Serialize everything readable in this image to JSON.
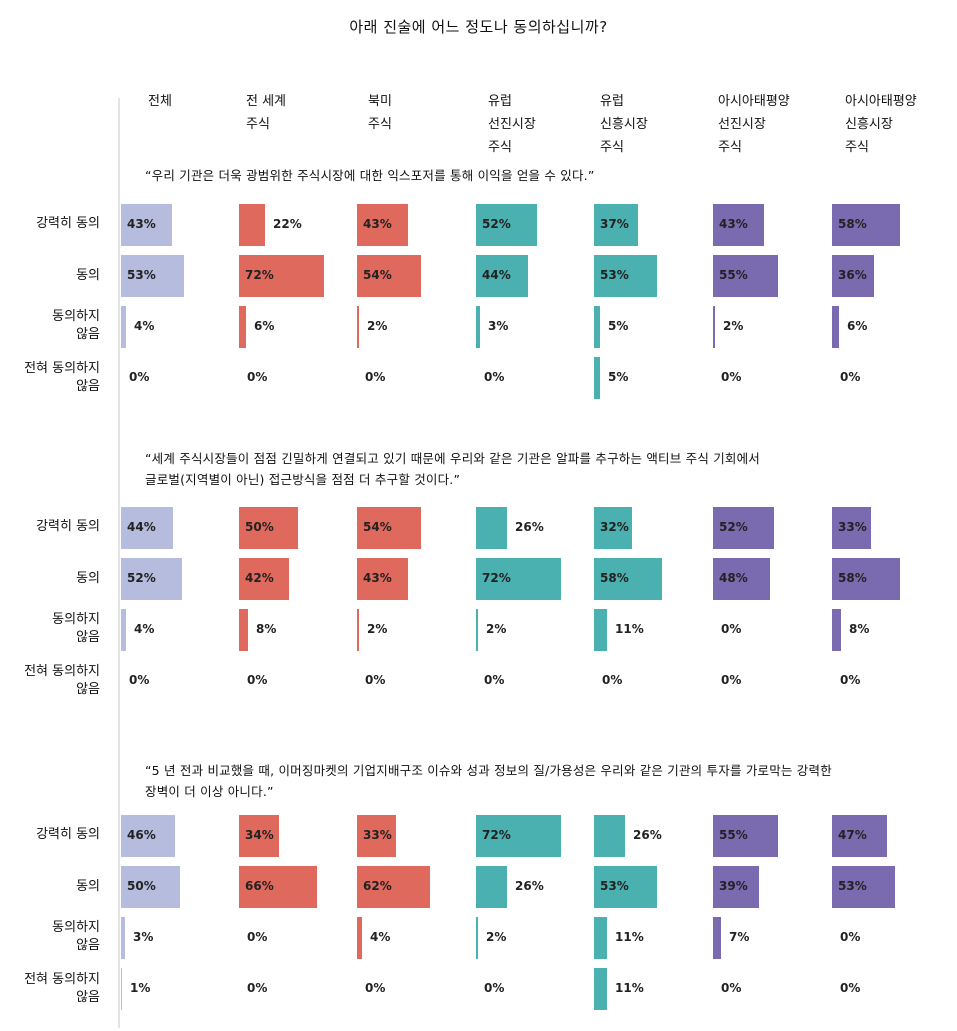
{
  "title": "아래 진술에 어느 정도나 동의하십니까?",
  "colors": {
    "전체": "#b5bcdd",
    "전 세계 주식": "#e0695e",
    "북미 주식": "#e0695e",
    "유럽 선진시장 주식": "#4bb0b0",
    "유럽 신흥시장 주식": "#4bb0b0",
    "아시아태평양 선진시장 주식": "#7a6bb0",
    "아시아태평양 신흥시장 주식": "#7a6bb0"
  },
  "chart_data": {
    "type": "bar",
    "orientation": "horizontal",
    "columns": [
      [
        "전체"
      ],
      [
        "전 세계",
        "주식"
      ],
      [
        "북미",
        "주식"
      ],
      [
        "유럽",
        "선진시장",
        "주식"
      ],
      [
        "유럽",
        "신흥시장",
        "주식"
      ],
      [
        "아시아태평양",
        "선진시장",
        "주식"
      ],
      [
        "아시아태평양",
        "신흥시장",
        "주식"
      ]
    ],
    "categories": [
      [
        "강력히 동의"
      ],
      [
        "동의"
      ],
      [
        "동의하지",
        "않음"
      ],
      [
        "전혀 동의하지",
        "않음"
      ]
    ],
    "statements": [
      {
        "text": [
          "“우리 기관은 더욱 광범위한 주식시장에 대한 익스포저를 통해 이익을 얻을 수 있다.”"
        ],
        "values": [
          [
            43,
            53,
            4,
            0
          ],
          [
            22,
            72,
            6,
            0
          ],
          [
            43,
            54,
            2,
            0
          ],
          [
            52,
            44,
            3,
            0
          ],
          [
            37,
            53,
            5,
            5
          ],
          [
            43,
            55,
            2,
            0
          ],
          [
            58,
            36,
            6,
            0
          ]
        ]
      },
      {
        "text": [
          "“세계 주식시장들이 점점 긴밀하게 연결되고 있기 때문에 우리와 같은 기관은 알파를 추구하는 액티브 주식 기회에서",
          "글로벌(지역별이 아닌) 접근방식을 점점 더 추구할 것이다.”"
        ],
        "values": [
          [
            44,
            52,
            4,
            0
          ],
          [
            50,
            42,
            8,
            0
          ],
          [
            54,
            43,
            2,
            0
          ],
          [
            26,
            72,
            2,
            0
          ],
          [
            32,
            58,
            11,
            0
          ],
          [
            52,
            48,
            0,
            0
          ],
          [
            33,
            58,
            8,
            0
          ]
        ]
      },
      {
        "text": [
          "“5 년 전과 비교했을 때, 이머징마켓의 기업지배구조 이슈와 성과 정보의 질/가용성은 우리와 같은 기관의 투자를 가로막는 강력한",
          "장벽이 더 이상 아니다.”"
        ],
        "values": [
          [
            46,
            50,
            3,
            1
          ],
          [
            34,
            66,
            0,
            0
          ],
          [
            33,
            62,
            4,
            0
          ],
          [
            72,
            26,
            2,
            0
          ],
          [
            26,
            53,
            11,
            11
          ],
          [
            55,
            39,
            7,
            0
          ],
          [
            47,
            53,
            0,
            0
          ]
        ]
      }
    ]
  }
}
